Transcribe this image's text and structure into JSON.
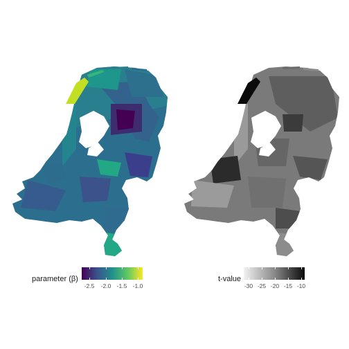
{
  "maps": [
    {
      "name": "parameter",
      "legend": {
        "title": "parameter (β)",
        "ticks": [
          "-2.5",
          "-2.0",
          "-1.5",
          "-1.0"
        ],
        "colors": [
          "#440154",
          "#3b528b",
          "#21908c",
          "#5dc863",
          "#fde725"
        ]
      }
    },
    {
      "name": "t-value",
      "legend": {
        "title": "t-value",
        "ticks": [
          "-30",
          "-25",
          "-20",
          "-15",
          "-10"
        ],
        "colors": [
          "#f2f2f2",
          "#bdbdbd",
          "#8a8a8a",
          "#4a4a4a",
          "#0a0a0a"
        ]
      }
    }
  ]
}
